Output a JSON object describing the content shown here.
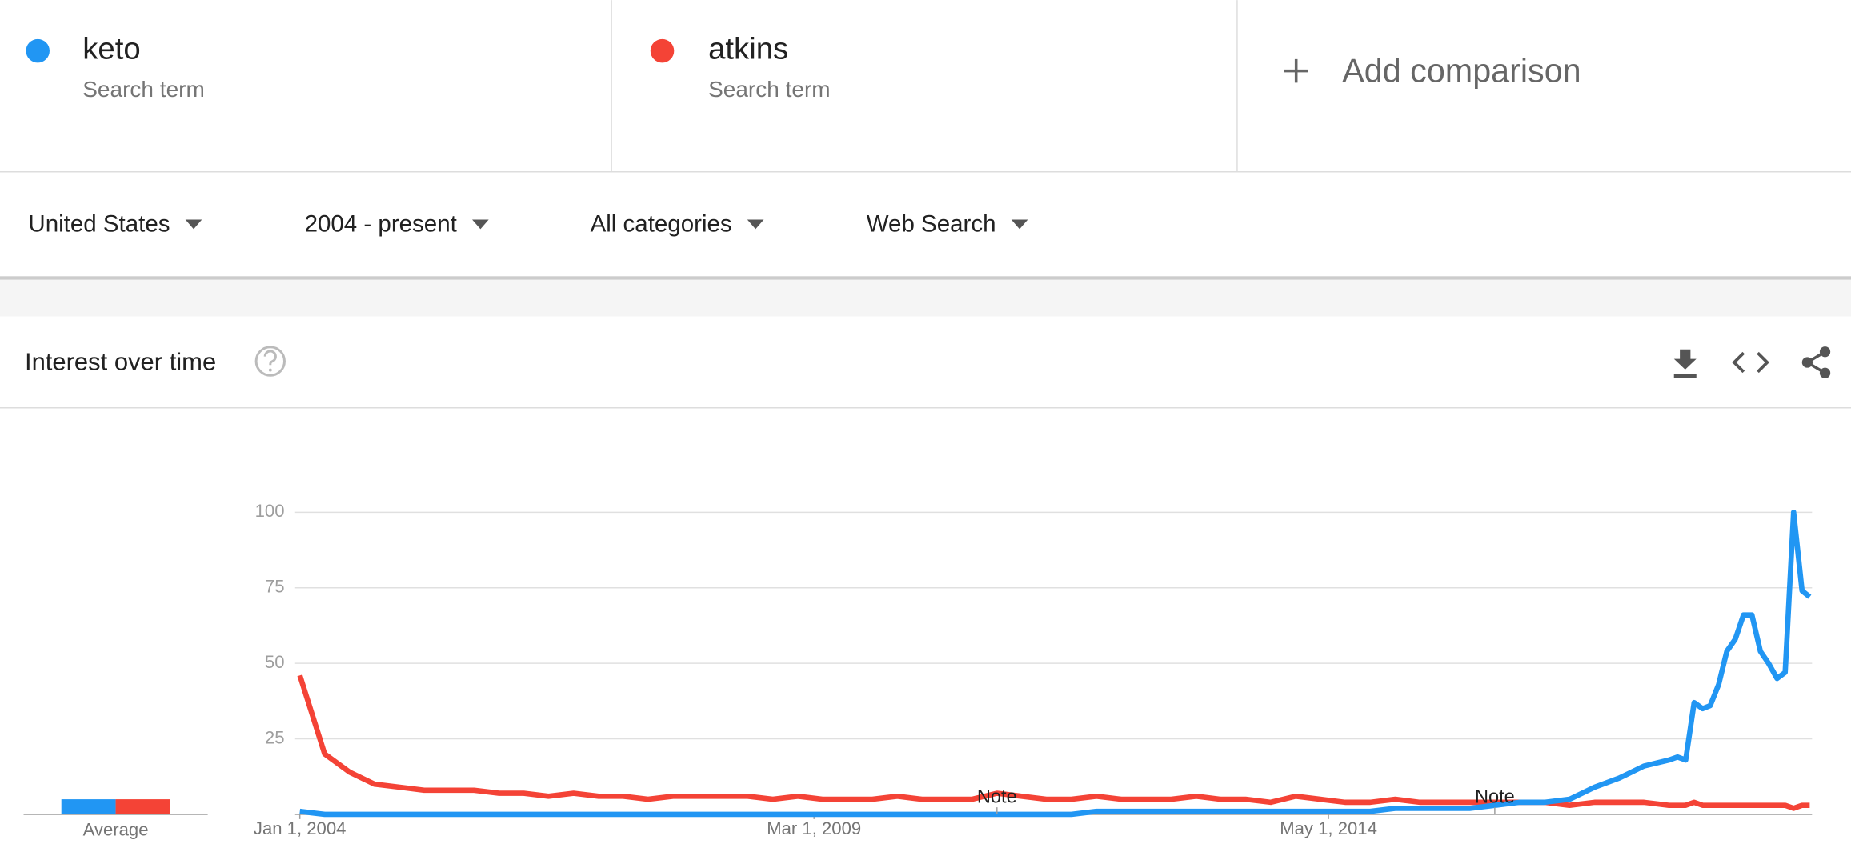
{
  "comparison": {
    "term_type": "Search term",
    "add_label": "Add comparison"
  },
  "filters": [
    "United States",
    "2004 - present",
    "All categories",
    "Web Search"
  ],
  "section": {
    "title": "Interest over time"
  },
  "chart_data": {
    "type": "line",
    "xlim": [
      "2004-01-01",
      "2019-03-01"
    ],
    "xticks": [
      {
        "value": "2004-01-01",
        "label": "Jan 1, 2004"
      },
      {
        "value": "2009-03-01",
        "label": "Mar 1, 2009"
      },
      {
        "value": "2014-05-01",
        "label": "May 1, 2014"
      }
    ],
    "ylim": [
      0,
      100
    ],
    "yticks": [
      25,
      50,
      75,
      100
    ],
    "grid": true,
    "annotations": [
      {
        "label": "Note",
        "x": "2011-01-01"
      },
      {
        "label": "Note",
        "x": "2016-01-01"
      }
    ],
    "average": {
      "label": "Average",
      "values": [
        5,
        5
      ]
    },
    "x": [
      "2004-01-01",
      "2004-04-01",
      "2004-07-01",
      "2004-10-01",
      "2005-01-01",
      "2005-04-01",
      "2005-07-01",
      "2005-10-01",
      "2006-01-01",
      "2006-04-01",
      "2006-07-01",
      "2006-10-01",
      "2007-01-01",
      "2007-04-01",
      "2007-07-01",
      "2007-10-01",
      "2008-01-01",
      "2008-04-01",
      "2008-07-01",
      "2008-10-01",
      "2009-01-01",
      "2009-04-01",
      "2009-07-01",
      "2009-10-01",
      "2010-01-01",
      "2010-04-01",
      "2010-07-01",
      "2010-10-01",
      "2011-01-01",
      "2011-04-01",
      "2011-07-01",
      "2011-10-01",
      "2012-01-01",
      "2012-04-01",
      "2012-07-01",
      "2012-10-01",
      "2013-01-01",
      "2013-04-01",
      "2013-07-01",
      "2013-10-01",
      "2014-01-01",
      "2014-04-01",
      "2014-07-01",
      "2014-10-01",
      "2015-01-01",
      "2015-04-01",
      "2015-07-01",
      "2015-10-01",
      "2016-01-01",
      "2016-04-01",
      "2016-07-01",
      "2016-10-01",
      "2017-01-01",
      "2017-04-01",
      "2017-07-01",
      "2017-10-01",
      "2017-11-01",
      "2017-12-01",
      "2018-01-01",
      "2018-02-01",
      "2018-03-01",
      "2018-04-01",
      "2018-05-01",
      "2018-06-01",
      "2018-07-01",
      "2018-08-01",
      "2018-09-01",
      "2018-10-01",
      "2018-11-01",
      "2018-12-01",
      "2019-01-01",
      "2019-02-01",
      "2019-03-01"
    ],
    "series": [
      {
        "name": "keto",
        "color": "#2196f3",
        "values": [
          1,
          0,
          0,
          0,
          0,
          0,
          0,
          0,
          0,
          0,
          0,
          0,
          0,
          0,
          0,
          0,
          0,
          0,
          0,
          0,
          0,
          0,
          0,
          0,
          0,
          0,
          0,
          0,
          0,
          0,
          0,
          0,
          1,
          1,
          1,
          1,
          1,
          1,
          1,
          1,
          1,
          1,
          1,
          1,
          2,
          2,
          2,
          2,
          3,
          4,
          4,
          5,
          9,
          12,
          16,
          18,
          19,
          18,
          37,
          35,
          36,
          43,
          54,
          58,
          66,
          66,
          54,
          50,
          45,
          47,
          100,
          74,
          72
        ]
      },
      {
        "name": "atkins",
        "color": "#f44336",
        "values": [
          46,
          20,
          14,
          10,
          9,
          8,
          8,
          8,
          7,
          7,
          6,
          7,
          6,
          6,
          5,
          6,
          6,
          6,
          6,
          5,
          6,
          5,
          5,
          5,
          6,
          5,
          5,
          5,
          7,
          6,
          5,
          5,
          6,
          5,
          5,
          5,
          6,
          5,
          5,
          4,
          6,
          5,
          4,
          4,
          5,
          4,
          4,
          4,
          4,
          4,
          4,
          3,
          4,
          4,
          4,
          3,
          3,
          3,
          4,
          3,
          3,
          3,
          3,
          3,
          3,
          3,
          3,
          3,
          3,
          3,
          2,
          3,
          3
        ]
      }
    ]
  }
}
